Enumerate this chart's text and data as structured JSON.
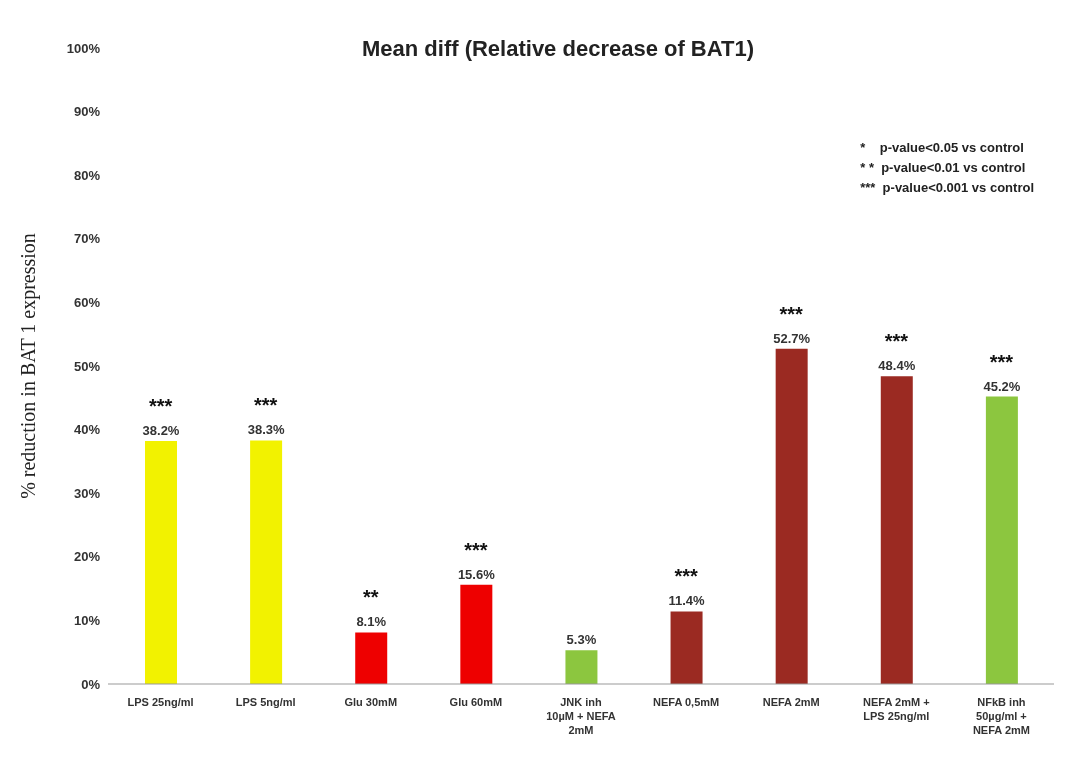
{
  "chart_data": {
    "type": "bar",
    "title": "Mean diff (Relative decrease of BAT1)",
    "ylabel": "% reduction in BAT 1 expression",
    "categories": [
      "LPS 25ng/ml",
      "LPS 5ng/ml",
      "Glu 30mM",
      "Glu 60mM",
      "JNK inh 10µM + NEFA 2mM",
      "NEFA 0,5mM",
      "NEFA 2mM",
      "NEFA 2mM + LPS 25ng/ml",
      "NFkB inh 50µg/ml + NEFA 2mM"
    ],
    "values": [
      38.2,
      38.3,
      8.1,
      15.6,
      5.3,
      11.4,
      52.7,
      48.4,
      45.2
    ],
    "colors": [
      "#f2f200",
      "#f2f200",
      "#ee0000",
      "#ee0000",
      "#8cc63f",
      "#9b2a22",
      "#9b2a22",
      "#9b2a22",
      "#8cc63f"
    ],
    "value_labels": [
      "38.2%",
      "38.3%",
      "8.1%",
      "15.6%",
      "5.3%",
      "11.4%",
      "52.7%",
      "48.4%",
      "45.2%"
    ],
    "ylim": [
      0,
      100
    ],
    "yticks": [
      {
        "value": 0,
        "label": "0%"
      },
      {
        "value": 10,
        "label": "10%"
      },
      {
        "value": 20,
        "label": "20%"
      },
      {
        "value": 30,
        "label": "30%"
      },
      {
        "value": 40,
        "label": "40%"
      },
      {
        "value": 50,
        "label": "50%"
      },
      {
        "value": 60,
        "label": "60%"
      },
      {
        "value": 70,
        "label": "70%"
      },
      {
        "value": 80,
        "label": "80%"
      },
      {
        "value": 90,
        "label": "90%"
      },
      {
        "value": 100,
        "label": "100%"
      }
    ],
    "annotations": [
      {
        "text": "***",
        "x": "LPS 25ng/ml",
        "y": 38.2
      },
      {
        "text": "***",
        "x": "LPS 5ng/ml",
        "y": 38.3
      },
      {
        "text": "**",
        "x": "Glu 30mM",
        "y": 8.1
      },
      {
        "text": "***",
        "x": "Glu 60mM",
        "y": 15.6
      },
      {
        "text": "***",
        "x": "NEFA 0,5mM",
        "y": 11.4
      },
      {
        "text": "***",
        "x": "NEFA 2mM",
        "y": 52.7
      },
      {
        "text": "***",
        "x": "NEFA 2mM + LPS 25ng/ml",
        "y": 48.4
      },
      {
        "text": "***",
        "x": "NFkB inh 50µg/ml + NEFA 2mM",
        "y": 45.2
      },
      "*    p-value<0.05 vs control",
      "* *  p-value<0.01 vs control",
      "***  p-value<0.001 vs control"
    ]
  }
}
